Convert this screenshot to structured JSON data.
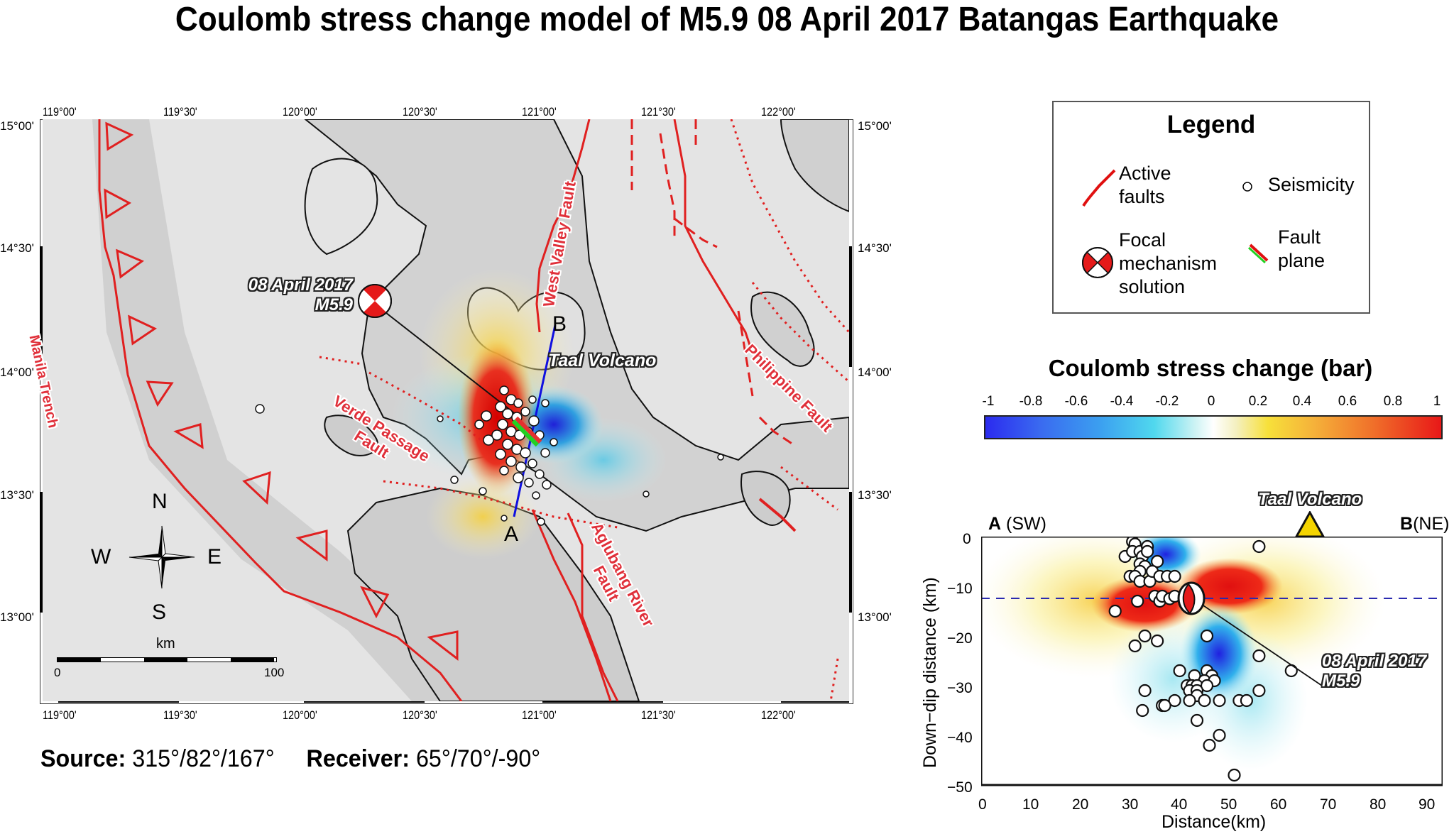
{
  "title": "Coulomb stress change model of M5.9 08 April 2017 Batangas Earthquake",
  "map": {
    "lon_ticks": [
      "119°00'",
      "119°30'",
      "120°00'",
      "120°30'",
      "121°00'",
      "121°30'",
      "122°00'"
    ],
    "lat_ticks": [
      "15°00'",
      "14°30'",
      "14°00'",
      "13°30'",
      "13°00'"
    ],
    "event_label_line1": "08 April 2017",
    "event_label_line2": "M5.9",
    "fault_labels": {
      "manila_trench": "Manila Trench",
      "west_valley": "West Valley Fault",
      "verde_passage_line1": "Verde Passage",
      "verde_passage_line2": "Fault",
      "aglubang_line1": "Aglubang River",
      "aglubang_line2": "Fault",
      "philippine": "Philippine Fault"
    },
    "volcano_label": "Taal Volcano",
    "profile_start": "A",
    "profile_end": "B",
    "compass": {
      "n": "N",
      "s": "S",
      "e": "E",
      "w": "W"
    },
    "scale": {
      "unit": "km",
      "min": "0",
      "max": "100"
    }
  },
  "legend": {
    "title": "Legend",
    "items": [
      {
        "icon": "active-fault-line-icon",
        "line1": "Active",
        "line2": "faults"
      },
      {
        "icon": "seismicity-circle-icon",
        "line1": "Seismicity"
      },
      {
        "icon": "focal-mechanism-icon",
        "line1": "Focal",
        "line2": "mechanism",
        "line3": "solution"
      },
      {
        "icon": "fault-plane-icon",
        "line1": "Fault",
        "line2": "plane"
      }
    ]
  },
  "colorbar": {
    "title": "Coulomb stress change (bar)",
    "ticks": [
      "-1",
      "-0.8",
      "-0.6",
      "-0.4",
      "-0.2",
      "0",
      "0.2",
      "0.4",
      "0.6",
      "0.8",
      "1"
    ],
    "colors": {
      "min": "#2b2bef",
      "mid": "#ffffff",
      "max": "#e81818"
    }
  },
  "section": {
    "left_end_bold": "A",
    "left_end_dir": " (SW)",
    "right_end_bold": "B",
    "right_end_dir": "(NE)",
    "volcano_label": "Taal Volcano",
    "event_label_line1": "08 April 2017",
    "event_label_line2": "M5.9",
    "ylabel": "Down−dip distance (km)",
    "xlabel": "Distance(km)",
    "yticks": [
      "0",
      "−10",
      "−20",
      "−30",
      "−40",
      "−50"
    ],
    "xticks": [
      "0",
      "10",
      "20",
      "30",
      "40",
      "50",
      "60",
      "70",
      "80",
      "90"
    ]
  },
  "params": {
    "source_label": "Source:",
    "source_value": "315°/82°/167°",
    "receiver_label": "Receiver:",
    "receiver_value": "65°/70°/-90°"
  },
  "chart_data": {
    "type": "scatter",
    "title": "Coulomb stress change cross-section A(SW)–B(NE)",
    "xlabel": "Distance(km)",
    "ylabel": "Down-dip distance (km)",
    "xlim": [
      0,
      93
    ],
    "ylim": [
      -50,
      0
    ],
    "mainshock": {
      "x": 44,
      "y": -12.5,
      "label": "08 April 2017 M5.9"
    },
    "reference_depth_km": -12.5,
    "volcano_x": 66,
    "seismicity": [
      [
        30.5,
        -1
      ],
      [
        31,
        -1.5
      ],
      [
        29,
        -4
      ],
      [
        30.5,
        -3
      ],
      [
        32,
        -3
      ],
      [
        32.5,
        -4
      ],
      [
        32,
        -5.5
      ],
      [
        33.5,
        -2
      ],
      [
        33.5,
        -3
      ],
      [
        35.5,
        -5
      ],
      [
        33,
        -6
      ],
      [
        32,
        -7
      ],
      [
        30,
        -8
      ],
      [
        31,
        -8
      ],
      [
        32,
        -9
      ],
      [
        34,
        -9
      ],
      [
        34.5,
        -7
      ],
      [
        36,
        -8
      ],
      [
        37.5,
        -8
      ],
      [
        39,
        -8
      ],
      [
        31.5,
        -13
      ],
      [
        27,
        -15
      ],
      [
        35,
        -12
      ],
      [
        36,
        -13
      ],
      [
        36.5,
        -12
      ],
      [
        38,
        -12.5
      ],
      [
        39,
        -12
      ],
      [
        45.5,
        -20
      ],
      [
        33,
        -20
      ],
      [
        35.5,
        -21
      ],
      [
        31,
        -22
      ],
      [
        56,
        -2
      ],
      [
        56,
        -24
      ],
      [
        62.5,
        -27
      ],
      [
        56,
        -31
      ],
      [
        40,
        -27
      ],
      [
        45.5,
        -27
      ],
      [
        46.5,
        -28
      ],
      [
        43,
        -28
      ],
      [
        45,
        -29
      ],
      [
        47,
        -29
      ],
      [
        41.5,
        -30
      ],
      [
        42.5,
        -30
      ],
      [
        43.5,
        -30
      ],
      [
        45.5,
        -30
      ],
      [
        42,
        -31
      ],
      [
        43.5,
        -31
      ],
      [
        33,
        -31
      ],
      [
        43.5,
        -32
      ],
      [
        39,
        -33
      ],
      [
        42,
        -33
      ],
      [
        45,
        -33
      ],
      [
        48,
        -33
      ],
      [
        52,
        -33
      ],
      [
        53.5,
        -33
      ],
      [
        36.5,
        -34
      ],
      [
        37,
        -34
      ],
      [
        32.5,
        -35
      ],
      [
        43.5,
        -37
      ],
      [
        48,
        -40
      ],
      [
        46,
        -42
      ],
      [
        51,
        -48
      ]
    ],
    "colorbar": {
      "label": "Coulomb stress change (bar)",
      "range": [
        -1,
        1
      ],
      "ticks": [
        -1,
        -0.8,
        -0.6,
        -0.4,
        -0.2,
        0,
        0.2,
        0.4,
        0.6,
        0.8,
        1
      ]
    }
  }
}
